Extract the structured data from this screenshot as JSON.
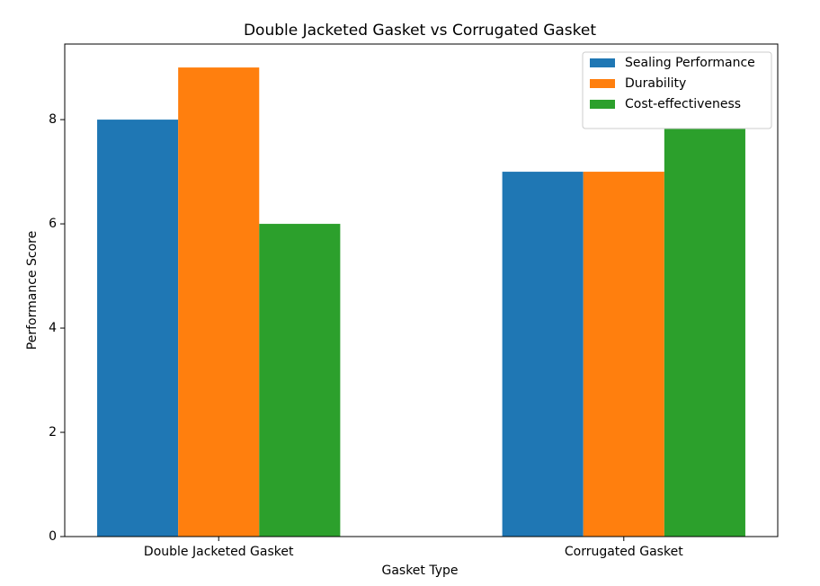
{
  "chart_data": {
    "type": "grouped_bar",
    "title": "Double Jacketed Gasket vs Corrugated Gasket",
    "x_label": "Gasket Type",
    "y_label": "Performance Score",
    "categories": [
      "Double Jacketed Gasket",
      "Corrugated Gasket"
    ],
    "series": [
      {
        "name": "Sealing Performance",
        "color": "#1f77b4",
        "values": [
          8,
          7
        ]
      },
      {
        "name": "Durability",
        "color": "#ff7f0e",
        "values": [
          9,
          7
        ]
      },
      {
        "name": "Cost-effectiveness",
        "color": "#2ca02c",
        "values": [
          6,
          8
        ]
      }
    ],
    "ylim": [
      0,
      9.45
    ],
    "yticks": [
      0,
      2,
      4,
      6,
      8
    ],
    "grid": false,
    "legend": "upper-right"
  }
}
